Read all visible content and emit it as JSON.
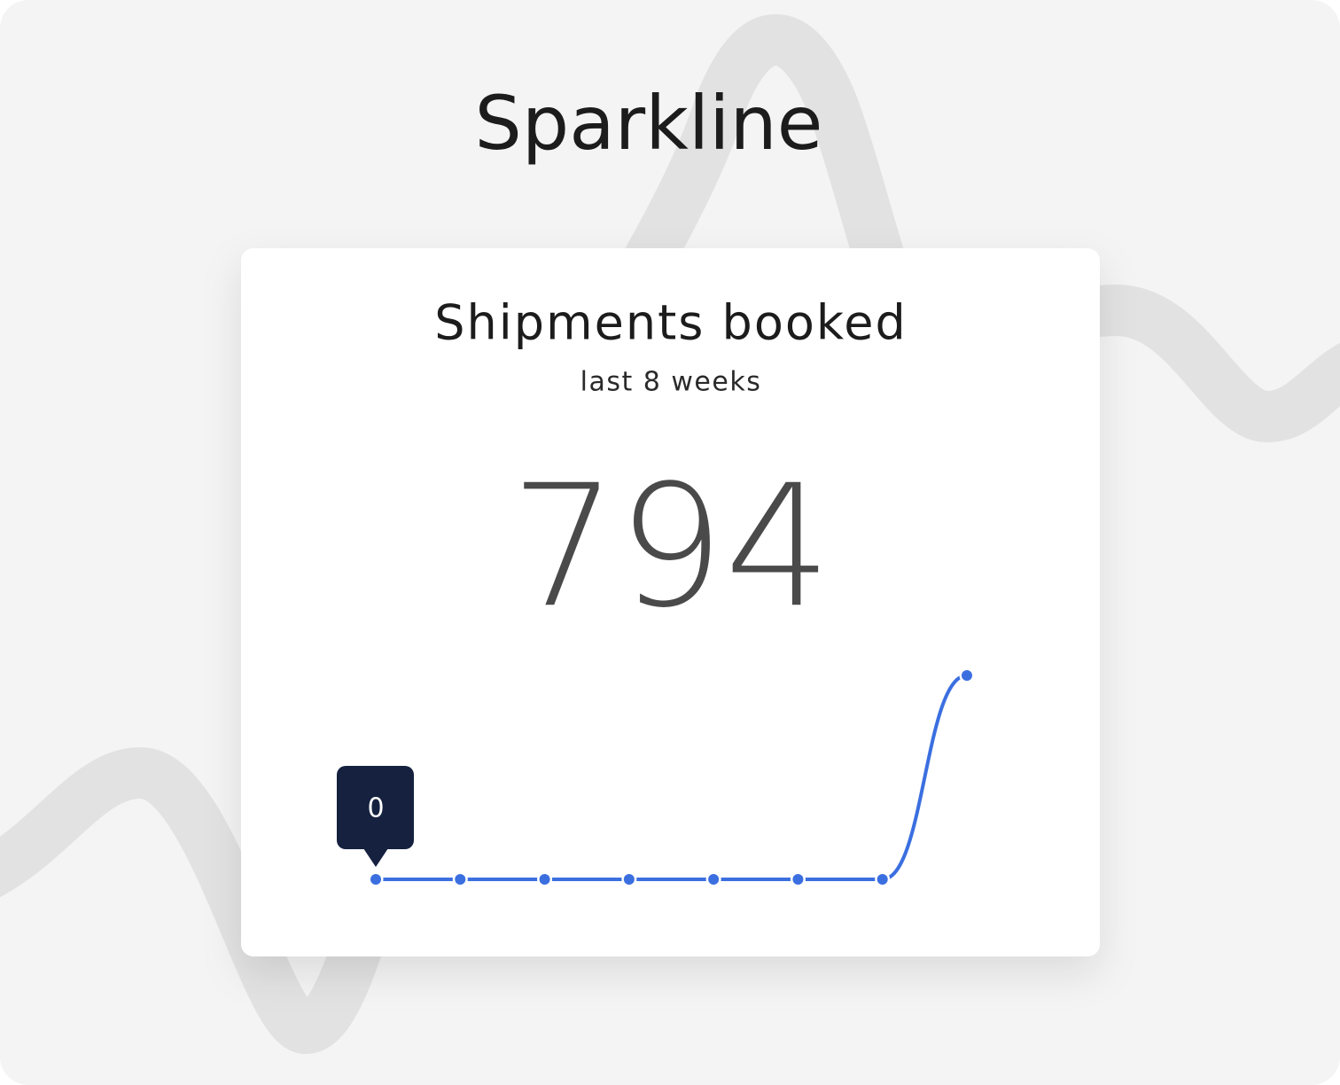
{
  "header": {
    "title": "Sparkline"
  },
  "chart_data": {
    "type": "line",
    "title": "Shipments booked",
    "subtitle": "last 8 weeks",
    "total": 794,
    "values": [
      0,
      0,
      0,
      0,
      0,
      0,
      0,
      794
    ],
    "color": "#3b6fe0"
  }
}
